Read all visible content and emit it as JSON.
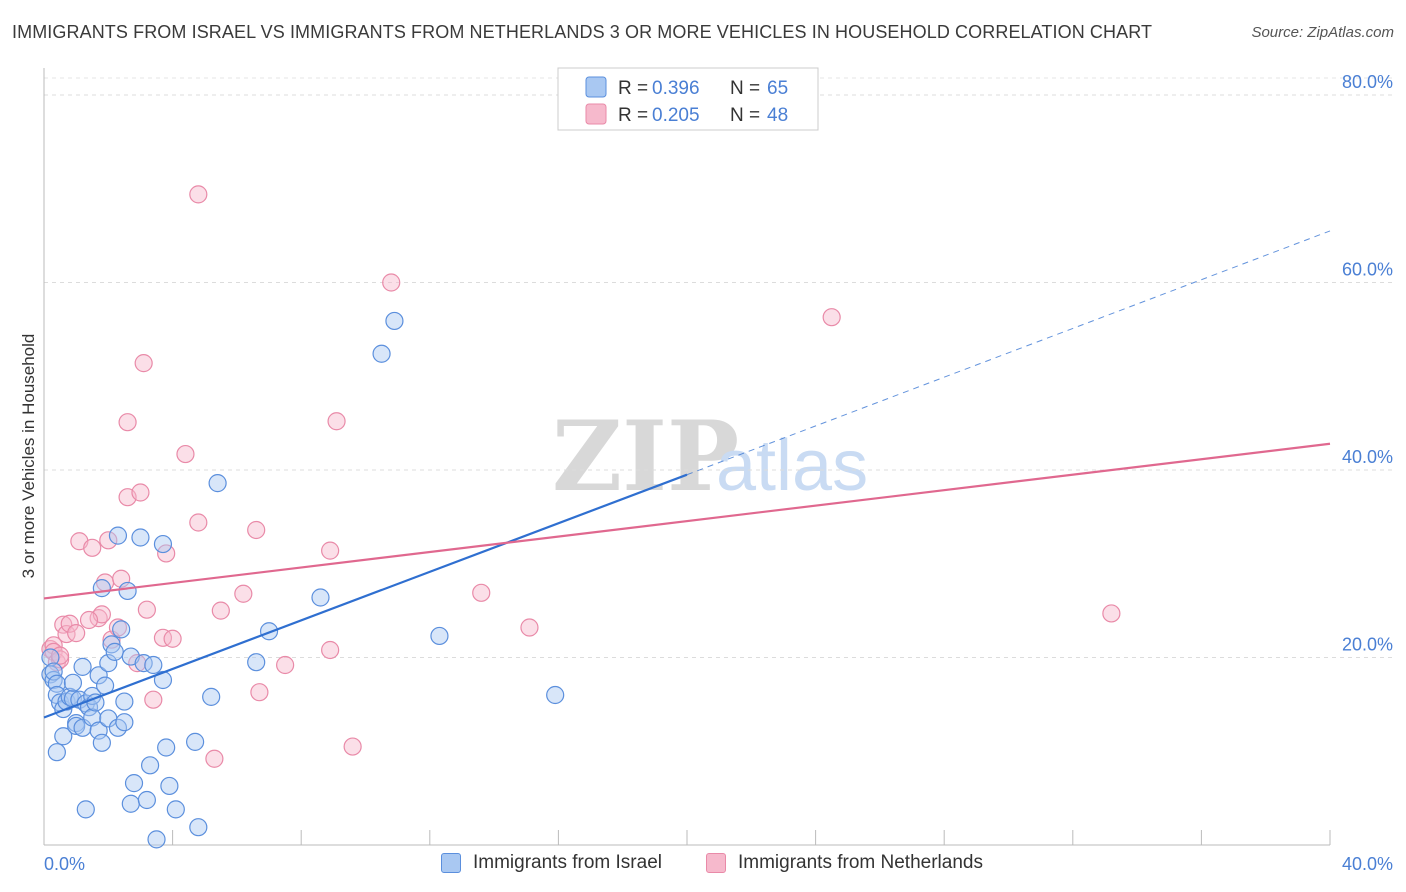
{
  "header": {
    "title": "IMMIGRANTS FROM ISRAEL VS IMMIGRANTS FROM NETHERLANDS 3 OR MORE VEHICLES IN HOUSEHOLD CORRELATION CHART",
    "source": "Source: ZipAtlas.com"
  },
  "watermark": {
    "zip": "ZIP",
    "atlas": "atlas"
  },
  "colors": {
    "israel_fill": "#a9c8f2",
    "israel_stroke": "#5b8fdd",
    "israel_line": "#2f6fd0",
    "netherlands_fill": "#f6b9cc",
    "netherlands_stroke": "#e98aa8",
    "netherlands_line": "#e0688f",
    "tick_label": "#4a7fd4"
  },
  "legend": {
    "rows": [
      {
        "r_label": "R =",
        "r_value": "0.396",
        "n_label": "N =",
        "n_value": "65"
      },
      {
        "r_label": "R =",
        "r_value": "0.205",
        "n_label": "N =",
        "n_value": "48"
      }
    ]
  },
  "chart_data": {
    "type": "scatter",
    "title": "IMMIGRANTS FROM ISRAEL VS IMMIGRANTS FROM NETHERLANDS 3 OR MORE VEHICLES IN HOUSEHOLD CORRELATION CHART",
    "xlabel": "",
    "ylabel": "3 or more Vehicles in Household",
    "xlim": [
      0,
      40
    ],
    "ylim": [
      0,
      80
    ],
    "x_tick_labels": [
      "0.0%",
      "40.0%"
    ],
    "y_ticks": [
      20,
      40,
      60,
      80
    ],
    "y_tick_labels": [
      "20.0%",
      "40.0%",
      "60.0%",
      "80.0%"
    ],
    "grid": true,
    "legend_position": "top-center",
    "series": [
      {
        "name": "Immigrants from Israel",
        "r": 0.396,
        "n": 65,
        "trend": {
          "x0": 0,
          "y0": 13.6,
          "x1": 20,
          "y1": 39.5,
          "dashed_to_x": 40,
          "dashed_to_y": 65.5
        },
        "points": [
          [
            0.2,
            20.0
          ],
          [
            0.2,
            18.2
          ],
          [
            0.3,
            17.6
          ],
          [
            0.3,
            18.5
          ],
          [
            0.4,
            17.2
          ],
          [
            0.4,
            16.0
          ],
          [
            0.5,
            15.2
          ],
          [
            0.6,
            11.6
          ],
          [
            0.6,
            14.5
          ],
          [
            0.7,
            15.3
          ],
          [
            0.8,
            15.8
          ],
          [
            0.9,
            15.6
          ],
          [
            0.9,
            17.3
          ],
          [
            1.0,
            13.0
          ],
          [
            1.0,
            12.7
          ],
          [
            1.1,
            15.5
          ],
          [
            1.2,
            12.5
          ],
          [
            1.2,
            19.0
          ],
          [
            1.3,
            15.1
          ],
          [
            1.4,
            14.7
          ],
          [
            1.5,
            15.9
          ],
          [
            1.5,
            13.6
          ],
          [
            1.6,
            15.2
          ],
          [
            1.7,
            18.1
          ],
          [
            1.7,
            12.2
          ],
          [
            1.8,
            27.4
          ],
          [
            1.8,
            10.9
          ],
          [
            1.9,
            17.0
          ],
          [
            2.0,
            19.4
          ],
          [
            2.0,
            13.5
          ],
          [
            2.1,
            21.4
          ],
          [
            2.2,
            20.6
          ],
          [
            2.3,
            33.0
          ],
          [
            2.3,
            12.5
          ],
          [
            2.4,
            23.0
          ],
          [
            2.5,
            15.3
          ],
          [
            2.5,
            13.1
          ],
          [
            2.6,
            27.1
          ],
          [
            2.7,
            20.1
          ],
          [
            2.8,
            6.6
          ],
          [
            2.7,
            4.4
          ],
          [
            3.0,
            32.8
          ],
          [
            3.1,
            19.4
          ],
          [
            3.2,
            4.8
          ],
          [
            3.3,
            8.5
          ],
          [
            3.4,
            19.2
          ],
          [
            3.5,
            0.6
          ],
          [
            3.7,
            32.1
          ],
          [
            3.7,
            17.6
          ],
          [
            3.8,
            10.4
          ],
          [
            3.9,
            6.3
          ],
          [
            4.1,
            3.8
          ],
          [
            4.7,
            11.0
          ],
          [
            4.8,
            1.9
          ],
          [
            5.2,
            15.8
          ],
          [
            5.4,
            38.6
          ],
          [
            6.6,
            19.5
          ],
          [
            7.0,
            22.8
          ],
          [
            8.6,
            26.4
          ],
          [
            10.5,
            52.4
          ],
          [
            10.9,
            55.9
          ],
          [
            12.3,
            22.3
          ],
          [
            15.9,
            16.0
          ],
          [
            0.4,
            9.9
          ],
          [
            1.3,
            3.8
          ]
        ]
      },
      {
        "name": "Immigrants from Netherlands",
        "r": 0.205,
        "n": 48,
        "trend": {
          "x0": 0,
          "y0": 26.3,
          "x1": 40,
          "y1": 42.8
        },
        "points": [
          [
            0.2,
            20.9
          ],
          [
            0.3,
            21.3
          ],
          [
            0.3,
            20.6
          ],
          [
            0.4,
            19.5
          ],
          [
            0.5,
            19.8
          ],
          [
            0.6,
            23.5
          ],
          [
            0.7,
            22.5
          ],
          [
            0.8,
            23.6
          ],
          [
            1.0,
            22.6
          ],
          [
            1.1,
            32.4
          ],
          [
            1.5,
            31.7
          ],
          [
            1.7,
            24.2
          ],
          [
            1.8,
            24.6
          ],
          [
            1.9,
            28.0
          ],
          [
            2.0,
            32.5
          ],
          [
            2.1,
            21.9
          ],
          [
            2.3,
            23.2
          ],
          [
            2.4,
            28.4
          ],
          [
            2.6,
            37.1
          ],
          [
            2.6,
            45.1
          ],
          [
            2.9,
            19.4
          ],
          [
            3.0,
            37.6
          ],
          [
            3.1,
            51.4
          ],
          [
            3.2,
            25.1
          ],
          [
            3.4,
            15.5
          ],
          [
            3.7,
            22.1
          ],
          [
            3.8,
            31.1
          ],
          [
            4.0,
            22.0
          ],
          [
            4.4,
            41.7
          ],
          [
            4.8,
            34.4
          ],
          [
            4.8,
            69.4
          ],
          [
            5.3,
            9.2
          ],
          [
            5.5,
            25.0
          ],
          [
            6.2,
            26.8
          ],
          [
            6.6,
            33.6
          ],
          [
            6.7,
            16.3
          ],
          [
            7.5,
            19.2
          ],
          [
            8.9,
            31.4
          ],
          [
            8.9,
            20.8
          ],
          [
            9.1,
            45.2
          ],
          [
            9.6,
            10.5
          ],
          [
            10.8,
            60.0
          ],
          [
            13.6,
            26.9
          ],
          [
            15.1,
            23.2
          ],
          [
            24.5,
            56.3
          ],
          [
            33.2,
            24.7
          ],
          [
            0.5,
            20.2
          ],
          [
            1.4,
            24.0
          ]
        ]
      }
    ]
  },
  "bottom_legend": {
    "israel_label": "Immigrants from Israel",
    "netherlands_label": "Immigrants from Netherlands"
  }
}
